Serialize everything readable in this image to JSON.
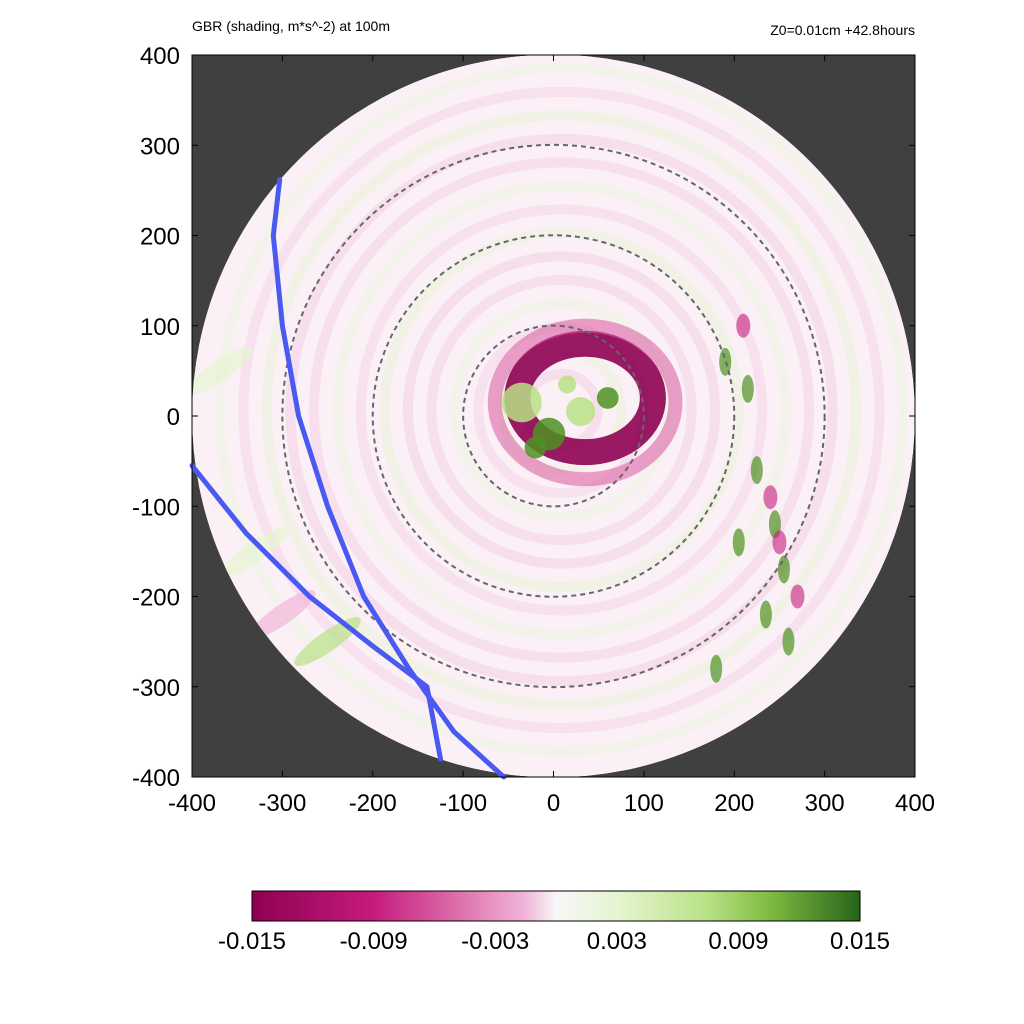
{
  "header": {
    "title": "GBR (shading, m*s^-2) at 100m",
    "info": "Z0=0.01cm  +42.8hours"
  },
  "chart_data": {
    "type": "heatmap",
    "title": "GBR (shading, m*s^-2) at 100m",
    "xlabel": "",
    "ylabel": "",
    "xlim": [
      -400,
      400
    ],
    "ylim": [
      -400,
      400
    ],
    "x_ticks": [
      -400,
      -300,
      -200,
      -100,
      0,
      100,
      200,
      300,
      400
    ],
    "y_ticks": [
      -400,
      -300,
      -200,
      -100,
      0,
      100,
      200,
      300,
      400
    ],
    "domain_radius": 400,
    "reference_circles": [
      100,
      200,
      300
    ],
    "colorbar": {
      "range": [
        -0.015,
        0.015
      ],
      "tick_labels": [
        "-0.015",
        "-0.009",
        "-0.003",
        "0.003",
        "0.009",
        "0.015"
      ],
      "negative_color": "#8e0152",
      "neutral_color": "#f7f7f7",
      "positive_color": "#276419"
    },
    "features": [
      {
        "name": "strong negative band around center",
        "value": -0.015
      },
      {
        "name": "positive core",
        "value": 0.012
      },
      {
        "name": "positive patches east side",
        "value": 0.01
      }
    ],
    "blue_lines": [
      [
        [
          -303,
          262
        ],
        [
          -310,
          200
        ],
        [
          -300,
          100
        ],
        [
          -282,
          0
        ],
        [
          -250,
          -100
        ],
        [
          -210,
          -200
        ],
        [
          -160,
          -280
        ],
        [
          -110,
          -350
        ],
        [
          -55,
          -400
        ]
      ],
      [
        [
          -400,
          -55
        ],
        [
          -340,
          -130
        ],
        [
          -270,
          -200
        ],
        [
          -200,
          -255
        ],
        [
          -140,
          -300
        ],
        [
          -125,
          -380
        ]
      ]
    ],
    "colors": {
      "background": "#404040",
      "blue_line": "#4a5af0",
      "circle_line": "#666666"
    }
  }
}
